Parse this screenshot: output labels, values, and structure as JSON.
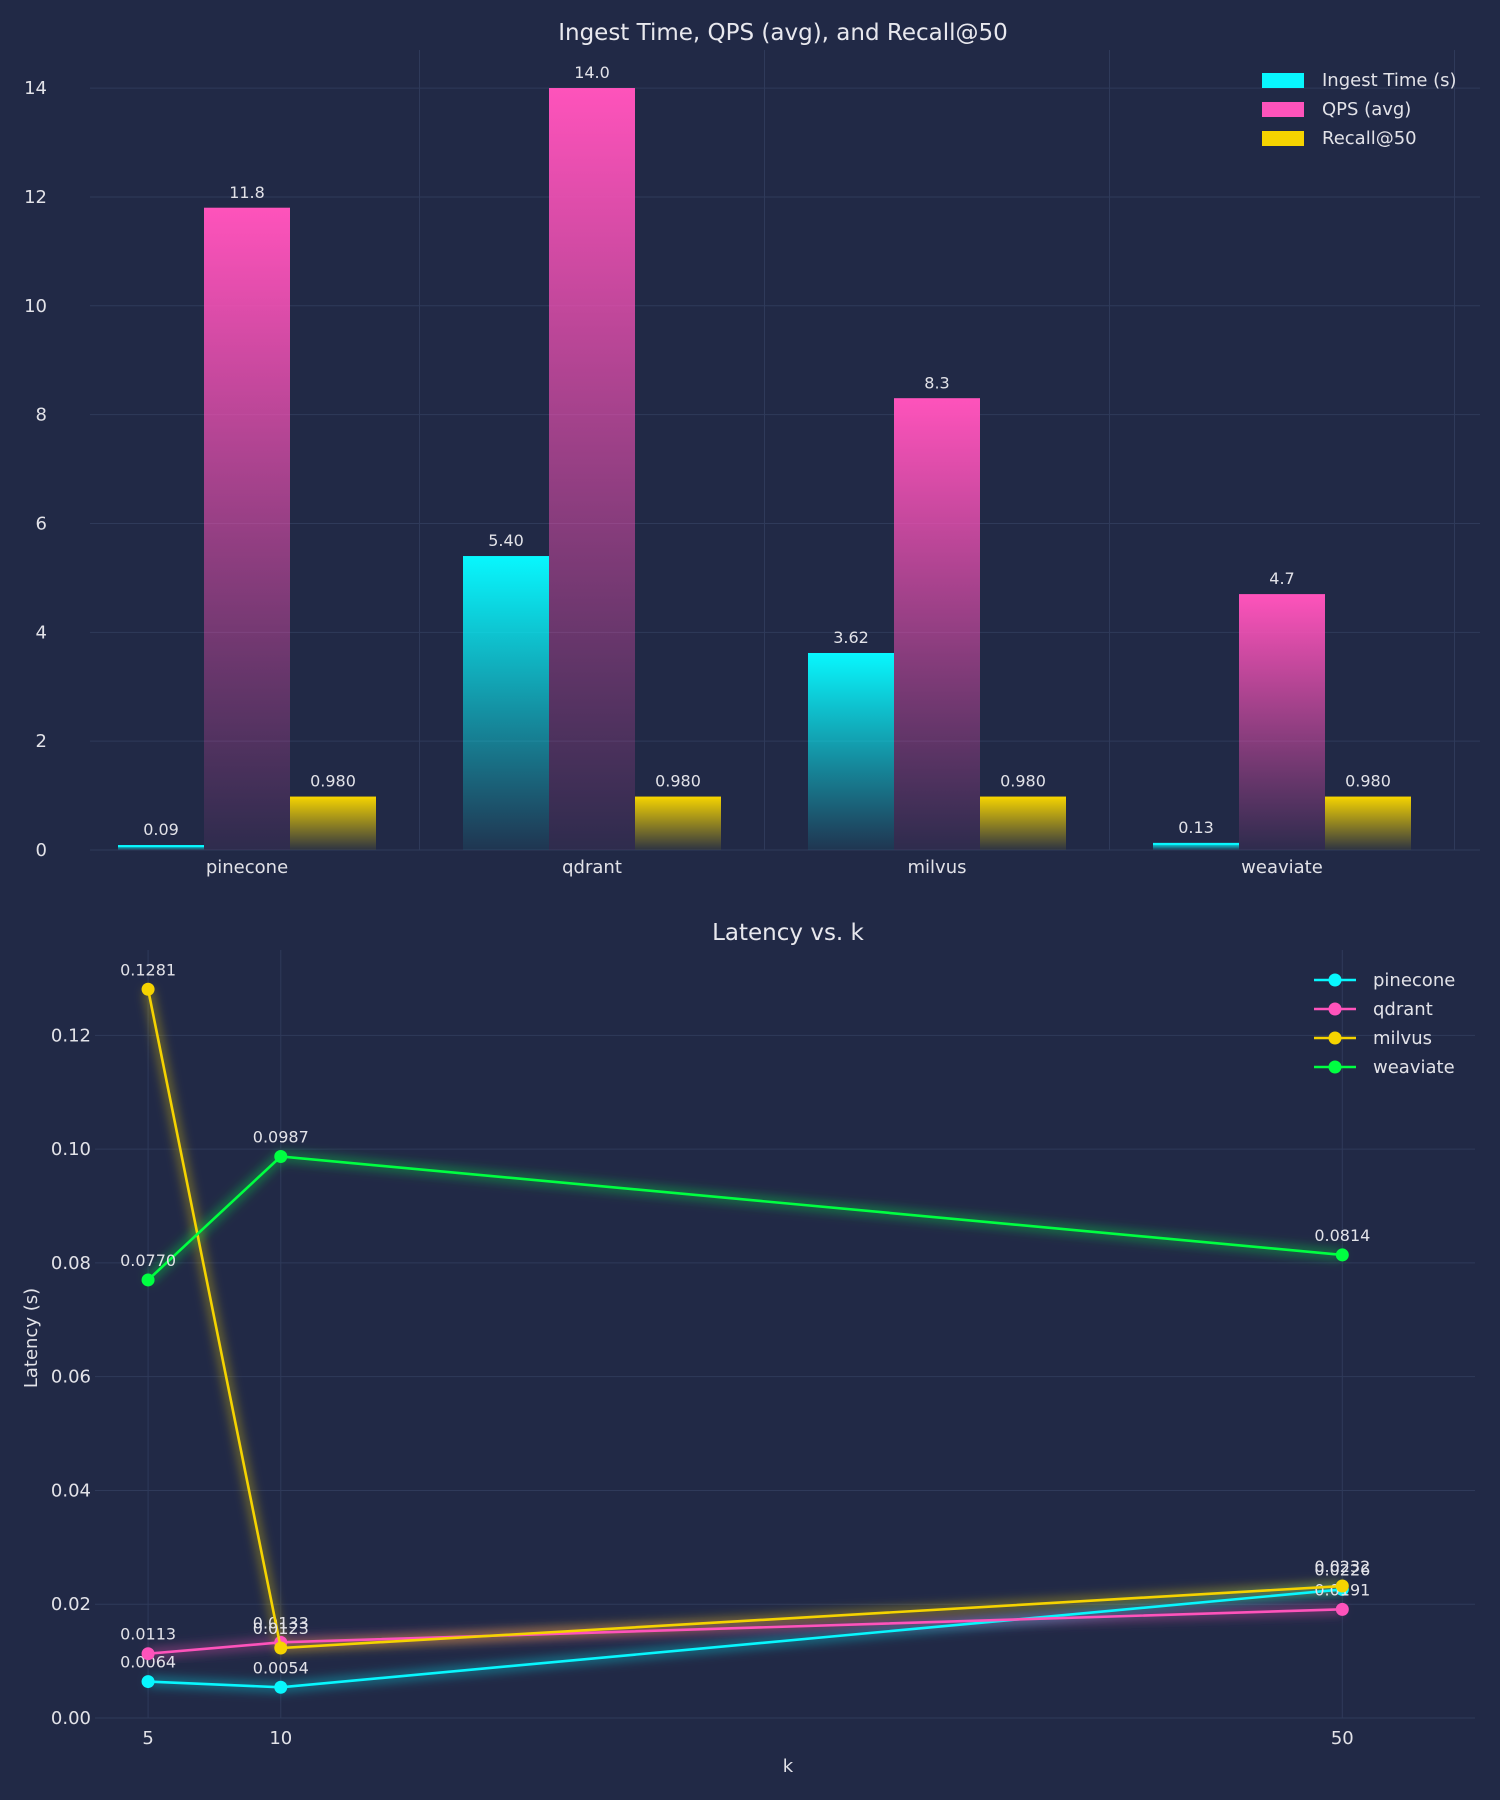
{
  "chart_data": [
    {
      "type": "bar",
      "title": "Ingest Time, QPS (avg), and Recall@50",
      "xlabel": "",
      "ylabel": "",
      "categories": [
        "pinecone",
        "qdrant",
        "milvus",
        "weaviate"
      ],
      "ylim": [
        0,
        14.7
      ],
      "yticks": [
        0,
        2,
        4,
        6,
        8,
        10,
        12,
        14
      ],
      "grid": true,
      "legend_position": "top-right",
      "series": [
        {
          "name": "Ingest Time (s)",
          "color": "#08f7fe",
          "values": [
            0.09,
            5.4,
            3.62,
            0.13
          ],
          "labels": [
            "0.09",
            "5.40",
            "3.62",
            "0.13"
          ]
        },
        {
          "name": "QPS (avg)",
          "color": "#fe53bb",
          "values": [
            11.8,
            14.0,
            8.3,
            4.7
          ],
          "labels": [
            "11.8",
            "14.0",
            "8.3",
            "4.7"
          ]
        },
        {
          "name": "Recall@50",
          "color": "#f5d300",
          "values": [
            0.98,
            0.98,
            0.98,
            0.98
          ],
          "labels": [
            "0.980",
            "0.980",
            "0.980",
            "0.980"
          ]
        }
      ]
    },
    {
      "type": "line",
      "title": "Latency vs. k",
      "xlabel": "k",
      "ylabel": "Latency (s)",
      "x": [
        5,
        10,
        50
      ],
      "xlim": [
        3,
        55
      ],
      "ylim": [
        0,
        0.135
      ],
      "yticks": [
        0,
        0.02,
        0.04,
        0.06,
        0.08,
        0.1,
        0.12
      ],
      "ytick_labels": [
        "0.00",
        "0.02",
        "0.04",
        "0.06",
        "0.08",
        "0.10",
        "0.12"
      ],
      "grid": true,
      "legend_position": "top-right",
      "series": [
        {
          "name": "pinecone",
          "color": "#08f7fe",
          "values": [
            0.0064,
            0.0054,
            0.0226
          ],
          "labels": [
            "0.0064",
            "0.0054",
            "0.0226"
          ]
        },
        {
          "name": "qdrant",
          "color": "#fe53bb",
          "values": [
            0.0113,
            0.0133,
            0.0191
          ],
          "labels": [
            "0.0113",
            "0.0133",
            "0.0191"
          ]
        },
        {
          "name": "milvus",
          "color": "#f5d300",
          "values": [
            0.1281,
            0.0123,
            0.0232
          ],
          "labels": [
            "0.1281",
            "0.0123",
            "0.0232"
          ]
        },
        {
          "name": "weaviate",
          "color": "#00ff41",
          "values": [
            0.077,
            0.0987,
            0.0814
          ],
          "labels": [
            "0.0770",
            "0.0987",
            "0.0814"
          ]
        }
      ]
    }
  ]
}
